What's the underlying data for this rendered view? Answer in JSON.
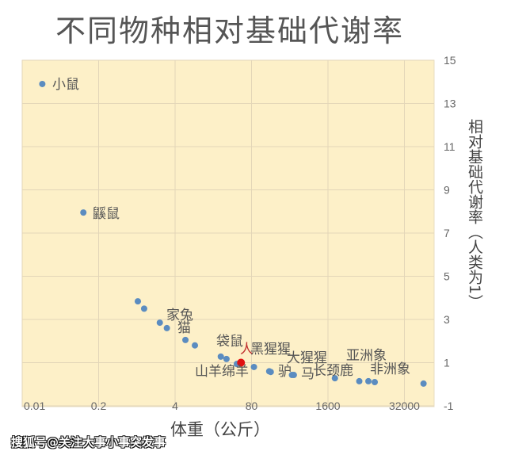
{
  "chart_data": {
    "type": "scatter",
    "title": "不同物种相对基础代谢率",
    "xlabel": "体重（公斤）",
    "ylabel": "相对基础代谢率（人类为1）",
    "xscale": "log20",
    "xlim": [
      0.01,
      64000
    ],
    "ylim": [
      -1,
      15
    ],
    "xticks": [
      "0.01",
      "0.2",
      "4",
      "80",
      "1600",
      "32000"
    ],
    "yticks": [
      "15",
      "13",
      "11",
      "9",
      "7",
      "5",
      "3",
      "1",
      "-1"
    ],
    "y_axis_side": "right",
    "grid": true,
    "colors": {
      "plot_bg": "#fdf0c8",
      "point": "#5b8cc0",
      "highlight": "#e01010",
      "text": "#555555"
    },
    "points": [
      {
        "x": 0.022,
        "y": 13.9
      },
      {
        "x": 0.11,
        "y": 7.95
      },
      {
        "x": 0.93,
        "y": 3.84
      },
      {
        "x": 1.19,
        "y": 3.5
      },
      {
        "x": 2.2,
        "y": 2.85
      },
      {
        "x": 2.9,
        "y": 2.6
      },
      {
        "x": 6.0,
        "y": 2.05
      },
      {
        "x": 8.7,
        "y": 1.8
      },
      {
        "x": 24,
        "y": 1.28
      },
      {
        "x": 30,
        "y": 1.17
      },
      {
        "x": 45,
        "y": 0.94
      },
      {
        "x": 53,
        "y": 1.0,
        "highlight": true
      },
      {
        "x": 88,
        "y": 0.8
      },
      {
        "x": 160,
        "y": 0.6
      },
      {
        "x": 170,
        "y": 0.57
      },
      {
        "x": 390,
        "y": 0.43
      },
      {
        "x": 420,
        "y": 0.43
      },
      {
        "x": 2100,
        "y": 0.28
      },
      {
        "x": 5460,
        "y": 0.14
      },
      {
        "x": 7800,
        "y": 0.14
      },
      {
        "x": 10000,
        "y": 0.1
      },
      {
        "x": 67700,
        "y": 0.03
      }
    ],
    "labels": [
      "小鼠",
      "鼷鼠",
      "家兔",
      "猫",
      "袋鼠",
      "人",
      "黑猩猩",
      "大猩猩",
      "山羊绵羊",
      "驴",
      "马",
      "长颈鹿",
      "亚洲象",
      "非洲象"
    ]
  },
  "watermark": "搜狐号@关注大事小事突发事"
}
